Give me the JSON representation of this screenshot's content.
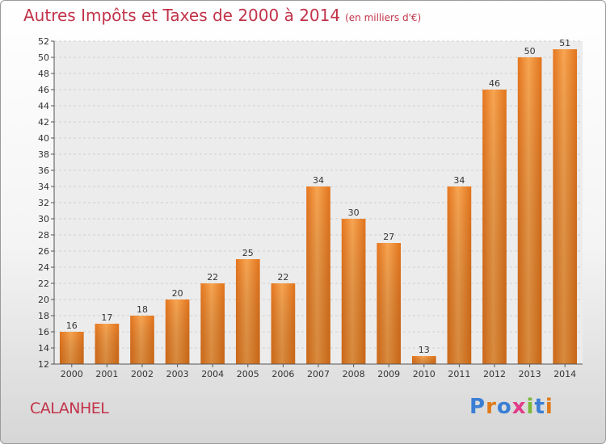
{
  "header": {
    "title": "Autres Impôts et Taxes de 2000 à 2014",
    "unit": "(en milliers d'€)"
  },
  "footer": {
    "place": "CALANHEL",
    "brand_letters": [
      {
        "ch": "P",
        "color": "#3a7fd5"
      },
      {
        "ch": "r",
        "color": "#e07a1a"
      },
      {
        "ch": "o",
        "color": "#3a7fd5"
      },
      {
        "ch": "x",
        "color": "#e23b8a"
      },
      {
        "ch": "i",
        "color": "#7bb83a"
      },
      {
        "ch": "t",
        "color": "#3a7fd5"
      },
      {
        "ch": "i",
        "color": "#e07a1a"
      }
    ]
  },
  "chart_data": {
    "type": "bar",
    "title": "Autres Impôts et Taxes de 2000 à 2014",
    "subtitle": "(en milliers d'€)",
    "xlabel": "",
    "ylabel": "",
    "categories": [
      "2000",
      "2001",
      "2002",
      "2003",
      "2004",
      "2005",
      "2006",
      "2007",
      "2008",
      "2009",
      "2010",
      "2011",
      "2012",
      "2013",
      "2014"
    ],
    "values": [
      16,
      17,
      18,
      20,
      22,
      25,
      22,
      34,
      30,
      27,
      13,
      34,
      46,
      50,
      51
    ],
    "ylim": [
      12,
      52
    ],
    "ytick_step": 2,
    "grid": true,
    "bar_color": "#f0882e"
  }
}
